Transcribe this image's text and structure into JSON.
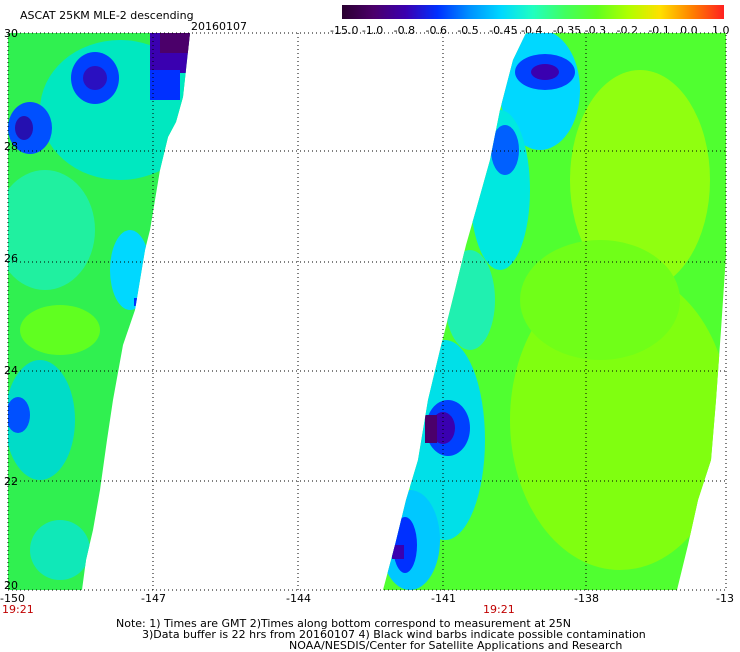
{
  "header": {
    "title": "ASCAT 25KM MLE-2 descending",
    "date": "20160107"
  },
  "colorbar": {
    "labels": [
      "-15.0",
      "-1.0",
      "-0.8",
      "-0.6",
      "-0.5",
      "-0.45",
      "-0.4",
      "-0.35",
      "-0.3",
      "-0.2",
      "-0.1",
      "0.0",
      "1.0"
    ],
    "colors": [
      "#2a0030",
      "#4b006a",
      "#3a00b0",
      "#0030ff",
      "#0090ff",
      "#00d8ff",
      "#20ffc0",
      "#40ff60",
      "#60ff20",
      "#b0ff00",
      "#ffe000",
      "#ff8000",
      "#ff2020"
    ]
  },
  "axes": {
    "lon_ticks": [
      "-150",
      "-147",
      "-144",
      "-141",
      "-138",
      "-13"
    ],
    "lat_ticks": [
      "30",
      "28",
      "26",
      "24",
      "22",
      "20"
    ]
  },
  "pass_times": {
    "left": "19:21",
    "right": "19:21"
  },
  "notes": {
    "line1": "Note: 1) Times are GMT 2)Times along bottom correspond to measurement at 25N",
    "line2": "3)Data buffer is 22 hrs from 20160107 4) Black wind barbs indicate possible contamination",
    "line3": "NOAA/NESDIS/Center for Satellite Applications and Research"
  }
}
